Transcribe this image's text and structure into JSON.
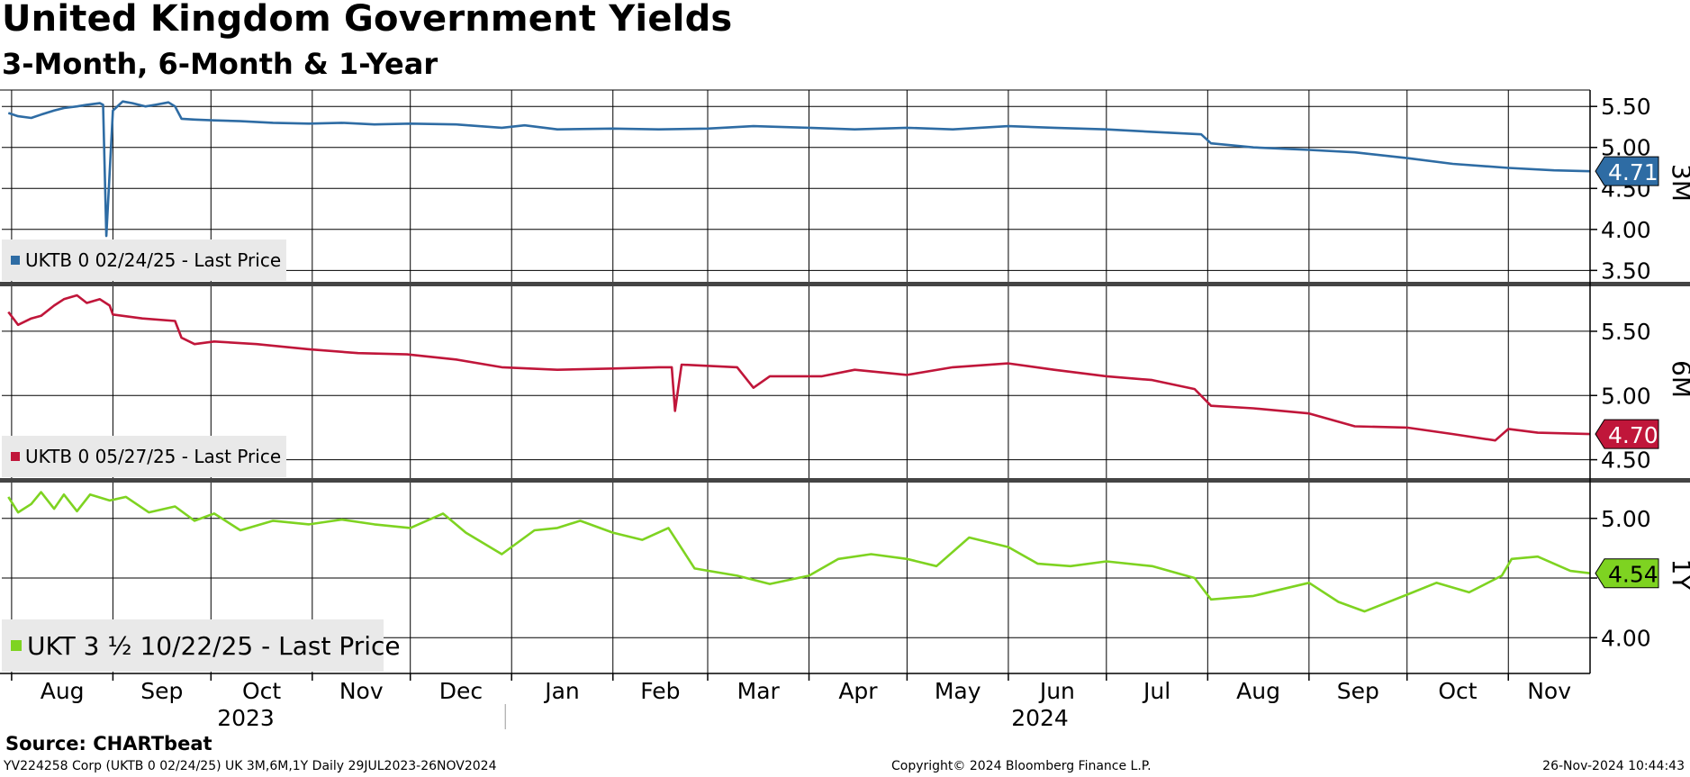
{
  "header": {
    "title": "United Kingdom Government Yields",
    "subtitle": "3-Month, 6-Month & 1-Year"
  },
  "footer": {
    "source": "Source:  CHARTbeat",
    "left": "YV224258 Corp (UKTB 0 02/24/25) UK 3M,6M,1Y  Daily 29JUL2023-26NOV2024",
    "center": "Copyright© 2024 Bloomberg Finance L.P.",
    "right": "26-Nov-2024 10:44:43"
  },
  "chart_data": {
    "type": "line",
    "x_start": "2023-07-29",
    "x_end": "2024-11-26",
    "month_labels": [
      "Aug",
      "Sep",
      "Oct",
      "Nov",
      "Dec",
      "Jan",
      "Feb",
      "Mar",
      "Apr",
      "May",
      "Jun",
      "Jul",
      "Aug",
      "Sep",
      "Oct",
      "Nov"
    ],
    "year_labels": [
      "2023",
      "2024"
    ],
    "panels": [
      {
        "name": "UKTB 0 02/24/25 - Last Price",
        "side_label": "3M",
        "color": "#2e6ca4",
        "last_value": "4.71",
        "ylim": [
          3.35,
          5.7
        ],
        "yticks": [
          3.5,
          4.0,
          4.5,
          5.0,
          5.5
        ],
        "ytick_labels": [
          "3.50",
          "4.00",
          "4.50",
          "5.00",
          "5.50"
        ],
        "series": [
          [
            "2023-07-31",
            5.42
          ],
          [
            "2023-08-03",
            5.38
          ],
          [
            "2023-08-07",
            5.36
          ],
          [
            "2023-08-10",
            5.4
          ],
          [
            "2023-08-14",
            5.45
          ],
          [
            "2023-08-17",
            5.48
          ],
          [
            "2023-08-21",
            5.5
          ],
          [
            "2023-08-24",
            5.52
          ],
          [
            "2023-08-28",
            5.54
          ],
          [
            "2023-08-29",
            5.52
          ],
          [
            "2023-08-30",
            3.92
          ],
          [
            "2023-09-01",
            5.45
          ],
          [
            "2023-09-04",
            5.56
          ],
          [
            "2023-09-07",
            5.54
          ],
          [
            "2023-09-11",
            5.5
          ],
          [
            "2023-09-14",
            5.52
          ],
          [
            "2023-09-18",
            5.55
          ],
          [
            "2023-09-20",
            5.5
          ],
          [
            "2023-09-22",
            5.35
          ],
          [
            "2023-09-26",
            5.34
          ],
          [
            "2023-10-02",
            5.33
          ],
          [
            "2023-10-10",
            5.32
          ],
          [
            "2023-10-20",
            5.3
          ],
          [
            "2023-10-31",
            5.29
          ],
          [
            "2023-11-10",
            5.3
          ],
          [
            "2023-11-20",
            5.28
          ],
          [
            "2023-12-01",
            5.29
          ],
          [
            "2023-12-15",
            5.28
          ],
          [
            "2023-12-29",
            5.24
          ],
          [
            "2024-01-05",
            5.27
          ],
          [
            "2024-01-15",
            5.22
          ],
          [
            "2024-02-01",
            5.23
          ],
          [
            "2024-02-15",
            5.22
          ],
          [
            "2024-03-01",
            5.23
          ],
          [
            "2024-03-15",
            5.26
          ],
          [
            "2024-04-01",
            5.24
          ],
          [
            "2024-04-15",
            5.22
          ],
          [
            "2024-05-01",
            5.24
          ],
          [
            "2024-05-15",
            5.22
          ],
          [
            "2024-06-01",
            5.26
          ],
          [
            "2024-06-15",
            5.24
          ],
          [
            "2024-07-01",
            5.22
          ],
          [
            "2024-07-15",
            5.19
          ],
          [
            "2024-07-30",
            5.16
          ],
          [
            "2024-08-02",
            5.05
          ],
          [
            "2024-08-15",
            5.0
          ],
          [
            "2024-09-01",
            4.97
          ],
          [
            "2024-09-15",
            4.94
          ],
          [
            "2024-10-01",
            4.87
          ],
          [
            "2024-10-15",
            4.8
          ],
          [
            "2024-11-01",
            4.75
          ],
          [
            "2024-11-15",
            4.72
          ],
          [
            "2024-11-26",
            4.71
          ]
        ]
      },
      {
        "name": "UKTB 0 05/27/25 - Last Price",
        "side_label": "6M",
        "color": "#c0163a",
        "last_value": "4.70",
        "ylim": [
          4.35,
          5.85
        ],
        "yticks": [
          4.5,
          5.0,
          5.5
        ],
        "ytick_labels": [
          "4.50",
          "5.00",
          "5.50"
        ],
        "series": [
          [
            "2023-07-31",
            5.65
          ],
          [
            "2023-08-03",
            5.55
          ],
          [
            "2023-08-07",
            5.6
          ],
          [
            "2023-08-10",
            5.62
          ],
          [
            "2023-08-14",
            5.7
          ],
          [
            "2023-08-17",
            5.75
          ],
          [
            "2023-08-21",
            5.78
          ],
          [
            "2023-08-24",
            5.72
          ],
          [
            "2023-08-28",
            5.75
          ],
          [
            "2023-08-31",
            5.7
          ],
          [
            "2023-09-01",
            5.63
          ],
          [
            "2023-09-10",
            5.6
          ],
          [
            "2023-09-20",
            5.58
          ],
          [
            "2023-09-22",
            5.45
          ],
          [
            "2023-09-26",
            5.4
          ],
          [
            "2023-10-02",
            5.42
          ],
          [
            "2023-10-15",
            5.4
          ],
          [
            "2023-10-31",
            5.36
          ],
          [
            "2023-11-15",
            5.33
          ],
          [
            "2023-11-30",
            5.32
          ],
          [
            "2023-12-15",
            5.28
          ],
          [
            "2023-12-29",
            5.22
          ],
          [
            "2024-01-15",
            5.2
          ],
          [
            "2024-02-01",
            5.21
          ],
          [
            "2024-02-15",
            5.22
          ],
          [
            "2024-02-19",
            5.22
          ],
          [
            "2024-02-20",
            4.88
          ],
          [
            "2024-02-22",
            5.24
          ],
          [
            "2024-03-10",
            5.22
          ],
          [
            "2024-03-15",
            5.06
          ],
          [
            "2024-03-20",
            5.15
          ],
          [
            "2024-04-05",
            5.15
          ],
          [
            "2024-04-15",
            5.2
          ],
          [
            "2024-05-01",
            5.16
          ],
          [
            "2024-05-15",
            5.22
          ],
          [
            "2024-06-01",
            5.25
          ],
          [
            "2024-06-15",
            5.2
          ],
          [
            "2024-07-01",
            5.15
          ],
          [
            "2024-07-15",
            5.12
          ],
          [
            "2024-07-28",
            5.05
          ],
          [
            "2024-08-02",
            4.92
          ],
          [
            "2024-08-15",
            4.9
          ],
          [
            "2024-09-01",
            4.86
          ],
          [
            "2024-09-15",
            4.76
          ],
          [
            "2024-10-01",
            4.75
          ],
          [
            "2024-10-15",
            4.7
          ],
          [
            "2024-10-28",
            4.65
          ],
          [
            "2024-11-01",
            4.74
          ],
          [
            "2024-11-10",
            4.71
          ],
          [
            "2024-11-26",
            4.7
          ]
        ]
      },
      {
        "name": "UKT 3 ½  10/22/25 - Last Price",
        "side_label": "1Y",
        "color": "#7ed321",
        "last_value": "4.54",
        "ylim": [
          3.7,
          5.3
        ],
        "yticks": [
          4.0,
          4.5,
          5.0
        ],
        "ytick_labels": [
          "4.00",
          "4.50",
          "5.00"
        ],
        "series": [
          [
            "2023-07-31",
            5.18
          ],
          [
            "2023-08-03",
            5.05
          ],
          [
            "2023-08-07",
            5.12
          ],
          [
            "2023-08-10",
            5.22
          ],
          [
            "2023-08-14",
            5.08
          ],
          [
            "2023-08-17",
            5.2
          ],
          [
            "2023-08-21",
            5.06
          ],
          [
            "2023-08-25",
            5.2
          ],
          [
            "2023-08-31",
            5.15
          ],
          [
            "2023-09-05",
            5.18
          ],
          [
            "2023-09-12",
            5.05
          ],
          [
            "2023-09-20",
            5.1
          ],
          [
            "2023-09-26",
            4.98
          ],
          [
            "2023-10-02",
            5.04
          ],
          [
            "2023-10-10",
            4.9
          ],
          [
            "2023-10-20",
            4.98
          ],
          [
            "2023-10-31",
            4.95
          ],
          [
            "2023-11-10",
            4.99
          ],
          [
            "2023-11-20",
            4.95
          ],
          [
            "2023-12-01",
            4.92
          ],
          [
            "2023-12-11",
            5.04
          ],
          [
            "2023-12-18",
            4.88
          ],
          [
            "2023-12-29",
            4.7
          ],
          [
            "2024-01-08",
            4.9
          ],
          [
            "2024-01-15",
            4.92
          ],
          [
            "2024-01-22",
            4.98
          ],
          [
            "2024-02-01",
            4.88
          ],
          [
            "2024-02-10",
            4.82
          ],
          [
            "2024-02-18",
            4.92
          ],
          [
            "2024-02-26",
            4.58
          ],
          [
            "2024-03-10",
            4.52
          ],
          [
            "2024-03-20",
            4.45
          ],
          [
            "2024-04-01",
            4.52
          ],
          [
            "2024-04-10",
            4.66
          ],
          [
            "2024-04-20",
            4.7
          ],
          [
            "2024-05-01",
            4.66
          ],
          [
            "2024-05-10",
            4.6
          ],
          [
            "2024-05-20",
            4.84
          ],
          [
            "2024-06-01",
            4.76
          ],
          [
            "2024-06-10",
            4.62
          ],
          [
            "2024-06-20",
            4.6
          ],
          [
            "2024-07-01",
            4.64
          ],
          [
            "2024-07-15",
            4.6
          ],
          [
            "2024-07-28",
            4.5
          ],
          [
            "2024-08-02",
            4.32
          ],
          [
            "2024-08-15",
            4.35
          ],
          [
            "2024-09-01",
            4.46
          ],
          [
            "2024-09-10",
            4.3
          ],
          [
            "2024-09-18",
            4.22
          ],
          [
            "2024-10-01",
            4.36
          ],
          [
            "2024-10-10",
            4.46
          ],
          [
            "2024-10-20",
            4.38
          ],
          [
            "2024-10-30",
            4.52
          ],
          [
            "2024-11-02",
            4.66
          ],
          [
            "2024-11-10",
            4.68
          ],
          [
            "2024-11-20",
            4.56
          ],
          [
            "2024-11-26",
            4.54
          ]
        ]
      }
    ]
  }
}
